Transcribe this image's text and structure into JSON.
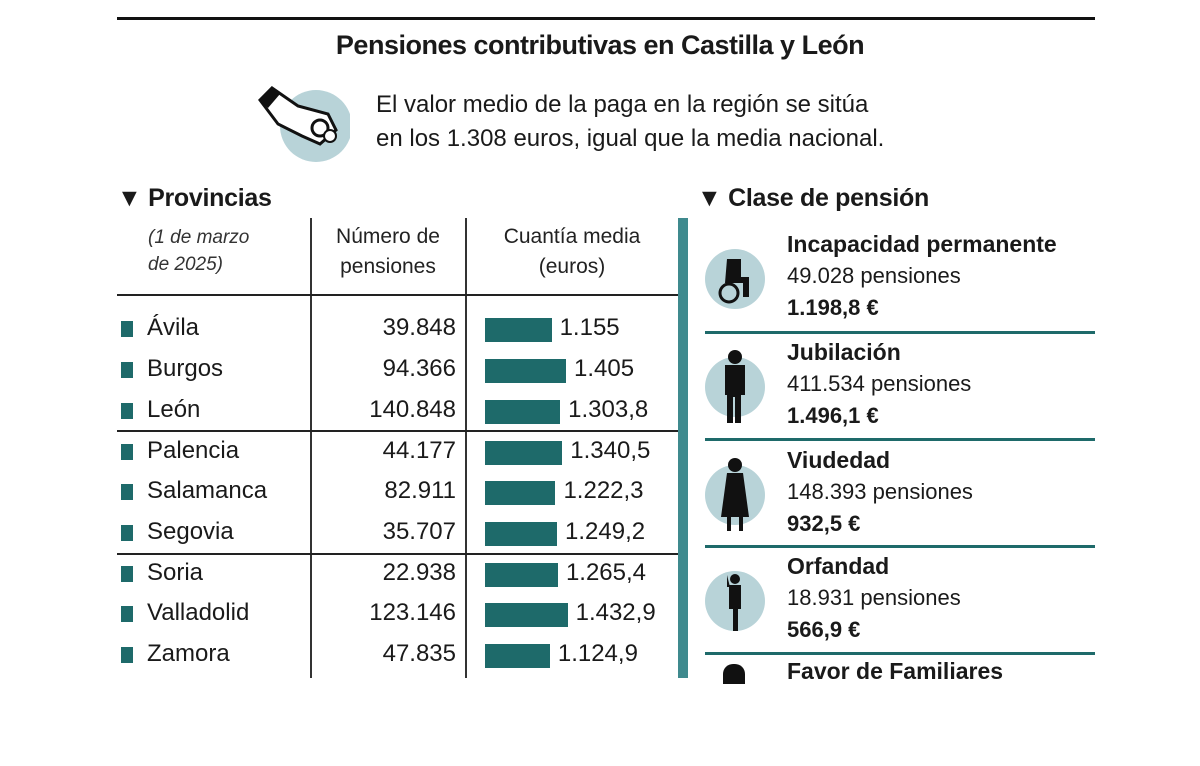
{
  "title": "Pensiones contributivas en Castilla y León",
  "subtitle_lines": [
    "El valor medio de la paga en la región se sitúa",
    "en los 1.308 euros, igual que la media nacional."
  ],
  "icons": {
    "header": "hand-with-coins-icon",
    "marker": "square-bullet-icon",
    "section": "triangle-down-icon"
  },
  "colors": {
    "accent": "#1e6a6a",
    "icon_bg": "#b8d3d8"
  },
  "provincias": {
    "heading": "Provincias",
    "date_lines": [
      "(1 de marzo",
      "de 2025)"
    ],
    "col_numero": [
      "Número de",
      "pensiones"
    ],
    "col_cuantia": [
      "Cuantía media",
      "(euros)"
    ]
  },
  "chart_data": {
    "type": "bar",
    "orientation": "horizontal",
    "categories": [
      "Ávila",
      "Burgos",
      "León",
      "Palencia",
      "Salamanca",
      "Segovia",
      "Soria",
      "Valladolid",
      "Zamora"
    ],
    "numero_pensiones": [
      "39.848",
      "94.366",
      "140.848",
      "44.177",
      "82.911",
      "35.707",
      "22.938",
      "123.146",
      "47.835"
    ],
    "labels": [
      "1.155",
      "1.405",
      "1.303,8",
      "1.340,5",
      "1.222,3",
      "1.249,2",
      "1.265,4",
      "1.432,9",
      "1.124,9"
    ],
    "values": [
      1155,
      1405,
      1303.8,
      1340.5,
      1222.3,
      1249.2,
      1265.4,
      1432.9,
      1124.9
    ],
    "xlim": [
      0,
      1500
    ]
  },
  "clase": {
    "heading": "Clase de pensión",
    "items": [
      {
        "title": "Incapacidad permanente",
        "count": "49.028 pensiones",
        "amount": "1.198,8 €",
        "icon": "person-in-wheelchair-icon"
      },
      {
        "title": "Jubilación",
        "count": "411.534 pensiones",
        "amount": "1.496,1 €",
        "icon": "elderly-person-icon"
      },
      {
        "title": "Viudedad",
        "count": "148.393 pensiones",
        "amount": "932,5 €",
        "icon": "widow-icon"
      },
      {
        "title": "Orfandad",
        "count": "18.931 pensiones",
        "amount": "566,9 €",
        "icon": "child-icon"
      },
      {
        "title": "Favor de Familiares",
        "icon": "family-icon"
      }
    ]
  }
}
